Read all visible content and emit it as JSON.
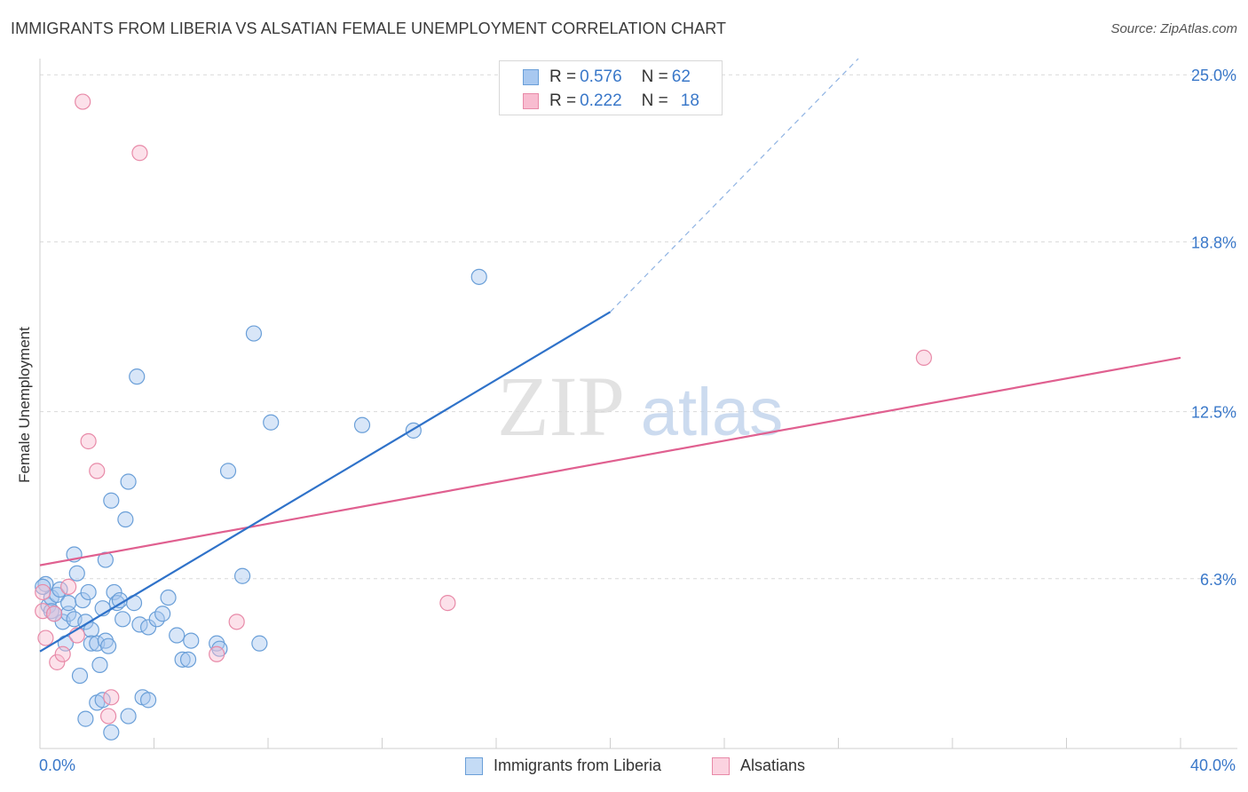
{
  "title": "IMMIGRANTS FROM LIBERIA VS ALSATIAN FEMALE UNEMPLOYMENT CORRELATION CHART",
  "source": "Source: ZipAtlas.com",
  "watermark": {
    "zip": "ZIP",
    "atlas": "atlas"
  },
  "legend": {
    "rows": [
      {
        "r_label": "R = ",
        "r_value": "0.576",
        "n_label": "N = ",
        "n_value": "62",
        "color": "#a8c8f0",
        "border": "#6a9fd8"
      },
      {
        "r_label": "R = ",
        "r_value": "0.222",
        "n_label": "N = ",
        "n_value": "18",
        "color": "#f8bcd0",
        "border": "#e88aa8"
      }
    ]
  },
  "chart_data": {
    "type": "scatter",
    "title": "IMMIGRANTS FROM LIBERIA VS ALSATIAN FEMALE UNEMPLOYMENT CORRELATION CHART",
    "xlabel": "",
    "ylabel": "Female Unemployment",
    "xlim": [
      0,
      40
    ],
    "ylim": [
      0,
      25.6
    ],
    "x_tick_labels": {
      "min": "0.0%",
      "max": "40.0%"
    },
    "y_ticks": [
      {
        "value": 6.3,
        "label": "6.3%"
      },
      {
        "value": 12.5,
        "label": "12.5%"
      },
      {
        "value": 18.8,
        "label": "18.8%"
      },
      {
        "value": 25.0,
        "label": "25.0%"
      }
    ],
    "series": [
      {
        "name": "Immigrants from Liberia",
        "color": "#a8c8f0",
        "edge": "#6a9fd8",
        "line_color": "#2f72c9",
        "trend": {
          "x0": 0,
          "y0": 3.6,
          "x1": 20.0,
          "y1": 16.2,
          "dash_to_x": 28.7,
          "dash_to_y": 25.6
        },
        "points": [
          [
            0.2,
            6.1
          ],
          [
            0.3,
            5.3
          ],
          [
            0.4,
            5.6
          ],
          [
            0.4,
            5.1
          ],
          [
            0.6,
            5.7
          ],
          [
            0.7,
            5.9
          ],
          [
            0.8,
            4.7
          ],
          [
            0.9,
            3.9
          ],
          [
            1.0,
            5.0
          ],
          [
            1.0,
            5.4
          ],
          [
            1.2,
            4.8
          ],
          [
            1.2,
            7.2
          ],
          [
            1.3,
            6.5
          ],
          [
            1.4,
            2.7
          ],
          [
            1.5,
            5.5
          ],
          [
            1.6,
            1.1
          ],
          [
            1.6,
            4.7
          ],
          [
            1.7,
            5.8
          ],
          [
            1.8,
            4.4
          ],
          [
            1.8,
            3.9
          ],
          [
            2.0,
            3.9
          ],
          [
            2.0,
            1.7
          ],
          [
            2.1,
            3.1
          ],
          [
            2.2,
            1.8
          ],
          [
            2.2,
            5.2
          ],
          [
            2.3,
            7.0
          ],
          [
            2.3,
            4.0
          ],
          [
            2.4,
            3.8
          ],
          [
            2.5,
            9.2
          ],
          [
            2.5,
            0.6
          ],
          [
            2.6,
            5.8
          ],
          [
            2.7,
            5.4
          ],
          [
            2.8,
            5.5
          ],
          [
            2.9,
            4.8
          ],
          [
            3.0,
            8.5
          ],
          [
            3.1,
            1.2
          ],
          [
            3.1,
            9.9
          ],
          [
            3.3,
            5.4
          ],
          [
            3.4,
            13.8
          ],
          [
            3.5,
            4.6
          ],
          [
            3.6,
            1.9
          ],
          [
            3.8,
            1.8
          ],
          [
            3.8,
            4.5
          ],
          [
            4.1,
            4.8
          ],
          [
            4.3,
            5.0
          ],
          [
            4.5,
            5.6
          ],
          [
            4.8,
            4.2
          ],
          [
            5.0,
            3.3
          ],
          [
            5.2,
            3.3
          ],
          [
            5.3,
            4.0
          ],
          [
            6.2,
            3.9
          ],
          [
            6.3,
            3.7
          ],
          [
            6.6,
            10.3
          ],
          [
            7.1,
            6.4
          ],
          [
            7.5,
            15.4
          ],
          [
            7.7,
            3.9
          ],
          [
            8.1,
            12.1
          ],
          [
            11.3,
            12.0
          ],
          [
            13.1,
            11.8
          ],
          [
            15.4,
            17.5
          ],
          [
            0.1,
            6.0
          ],
          [
            0.5,
            5.0
          ]
        ]
      },
      {
        "name": "Alsatians",
        "color": "#f8bcd0",
        "edge": "#e88aa8",
        "line_color": "#e06090",
        "trend": {
          "x0": 0,
          "y0": 6.8,
          "x1": 40,
          "y1": 14.5
        },
        "points": [
          [
            0.1,
            5.1
          ],
          [
            0.1,
            5.8
          ],
          [
            0.2,
            4.1
          ],
          [
            0.5,
            5.0
          ],
          [
            0.6,
            3.2
          ],
          [
            0.8,
            3.5
          ],
          [
            1.0,
            6.0
          ],
          [
            1.3,
            4.2
          ],
          [
            1.7,
            11.4
          ],
          [
            2.0,
            10.3
          ],
          [
            2.4,
            1.2
          ],
          [
            2.5,
            1.9
          ],
          [
            1.5,
            24.0
          ],
          [
            3.5,
            22.1
          ],
          [
            6.2,
            3.5
          ],
          [
            6.9,
            4.7
          ],
          [
            14.3,
            5.4
          ],
          [
            31.0,
            14.5
          ]
        ]
      }
    ]
  }
}
